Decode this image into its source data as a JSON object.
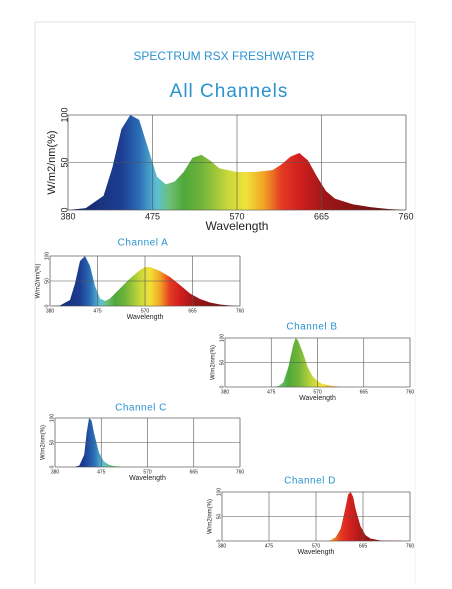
{
  "header": {
    "title": "SPECTRUM RSX FRESHWATER"
  },
  "chart_data": [
    {
      "type": "area",
      "title": "All Channels",
      "x_label": "Wavelength",
      "y_label": "W/m2/nm(%)",
      "x": [
        380,
        400,
        420,
        430,
        440,
        450,
        460,
        470,
        480,
        490,
        500,
        510,
        520,
        530,
        540,
        550,
        570,
        590,
        610,
        620,
        630,
        640,
        650,
        660,
        670,
        680,
        700,
        720,
        740,
        760
      ],
      "values": [
        0,
        2,
        15,
        45,
        85,
        100,
        95,
        65,
        35,
        27,
        30,
        40,
        55,
        58,
        52,
        44,
        40,
        40,
        42,
        48,
        56,
        60,
        52,
        35,
        20,
        12,
        6,
        3,
        1,
        0
      ],
      "xlim": [
        380,
        760
      ],
      "xticks": [
        380,
        475,
        570,
        665,
        760
      ],
      "ylim": [
        0,
        100
      ],
      "yticks": [
        0,
        50,
        100
      ],
      "grid": true
    },
    {
      "type": "area",
      "title": "Channel A",
      "x_label": "Wavelength",
      "y_label": "W/m2/nm(%)",
      "x": [
        380,
        400,
        420,
        430,
        440,
        450,
        460,
        470,
        480,
        490,
        500,
        520,
        540,
        560,
        570,
        580,
        600,
        620,
        640,
        660,
        680,
        700,
        720,
        740,
        760
      ],
      "values": [
        0,
        1,
        12,
        45,
        90,
        100,
        80,
        40,
        15,
        10,
        15,
        35,
        55,
        72,
        78,
        78,
        70,
        58,
        42,
        25,
        14,
        7,
        3,
        1,
        0
      ],
      "xlim": [
        380,
        760
      ],
      "xticks": [
        380,
        475,
        570,
        665,
        760
      ],
      "ylim": [
        0,
        100
      ],
      "yticks": [
        0,
        50,
        100
      ],
      "grid": true
    },
    {
      "type": "area",
      "title": "Channel B",
      "x_label": "Wavelength",
      "y_label": "W/m2/nm(%)",
      "x": [
        380,
        480,
        490,
        500,
        510,
        520,
        525,
        530,
        540,
        550,
        560,
        570,
        580,
        600,
        620,
        760
      ],
      "values": [
        0,
        0,
        2,
        10,
        40,
        85,
        100,
        95,
        70,
        40,
        22,
        12,
        6,
        2,
        0,
        0
      ],
      "xlim": [
        380,
        760
      ],
      "xticks": [
        380,
        475,
        570,
        665,
        760
      ],
      "ylim": [
        0,
        100
      ],
      "yticks": [
        0,
        50,
        100
      ],
      "grid": true
    },
    {
      "type": "area",
      "title": "Channel C",
      "x_label": "Wavelength",
      "y_label": "W/m2/nm(%)",
      "x": [
        380,
        420,
        430,
        440,
        445,
        450,
        455,
        460,
        470,
        480,
        490,
        500,
        520,
        760
      ],
      "values": [
        0,
        0,
        3,
        25,
        70,
        100,
        95,
        70,
        30,
        12,
        5,
        2,
        0,
        0
      ],
      "xlim": [
        380,
        760
      ],
      "xticks": [
        380,
        475,
        570,
        665,
        760
      ],
      "ylim": [
        0,
        100
      ],
      "yticks": [
        0,
        50,
        100
      ],
      "grid": true
    },
    {
      "type": "area",
      "title": "Channel D",
      "x_label": "Wavelength",
      "y_label": "W/m2/nm(%)",
      "x": [
        380,
        590,
        600,
        610,
        620,
        630,
        635,
        640,
        645,
        650,
        660,
        670,
        680,
        700,
        760
      ],
      "values": [
        0,
        0,
        2,
        8,
        25,
        70,
        95,
        100,
        90,
        65,
        30,
        12,
        5,
        1,
        0
      ],
      "xlim": [
        380,
        760
      ],
      "xticks": [
        380,
        475,
        570,
        665,
        760
      ],
      "ylim": [
        0,
        100
      ],
      "yticks": [
        0,
        50,
        100
      ],
      "grid": true
    }
  ]
}
